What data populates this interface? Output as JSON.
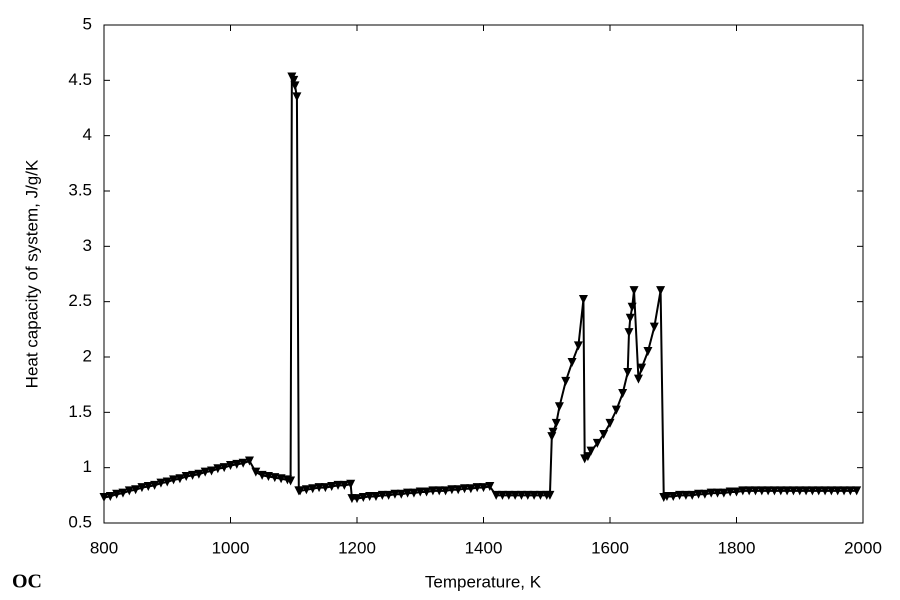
{
  "chart_data": {
    "type": "line",
    "logo": "OC",
    "x_label": "Temperature, K",
    "y_label": "Heat capacity of system, J/g/K",
    "xlim": [
      800,
      2000
    ],
    "xticks": [
      800,
      1000,
      1200,
      1400,
      1600,
      1800,
      2000
    ],
    "ylim": [
      0.5,
      5
    ],
    "yticks": [
      0.5,
      1,
      1.5,
      2,
      2.5,
      3,
      3.5,
      4,
      4.5,
      5
    ],
    "color": "#000000",
    "marker": "triangle-down",
    "x": [
      800,
      810,
      820,
      830,
      840,
      850,
      860,
      870,
      880,
      890,
      900,
      910,
      920,
      930,
      940,
      950,
      960,
      970,
      980,
      990,
      1000,
      1010,
      1020,
      1030,
      1040,
      1050,
      1060,
      1070,
      1080,
      1090,
      1095,
      1097,
      1100,
      1102,
      1105,
      1108,
      1110,
      1120,
      1130,
      1140,
      1150,
      1160,
      1170,
      1180,
      1190,
      1192,
      1200,
      1210,
      1220,
      1230,
      1240,
      1250,
      1260,
      1270,
      1280,
      1290,
      1300,
      1310,
      1320,
      1330,
      1340,
      1350,
      1360,
      1370,
      1380,
      1390,
      1400,
      1410,
      1420,
      1430,
      1440,
      1450,
      1460,
      1470,
      1480,
      1490,
      1500,
      1505,
      1508,
      1510,
      1515,
      1520,
      1530,
      1540,
      1550,
      1558,
      1560,
      1565,
      1570,
      1580,
      1590,
      1600,
      1610,
      1620,
      1628,
      1630,
      1632,
      1635,
      1638,
      1645,
      1650,
      1660,
      1670,
      1680,
      1685,
      1690,
      1700,
      1710,
      1720,
      1730,
      1740,
      1750,
      1760,
      1770,
      1780,
      1790,
      1800,
      1810,
      1820,
      1830,
      1840,
      1850,
      1860,
      1870,
      1880,
      1890,
      1900,
      1910,
      1920,
      1930,
      1940,
      1950,
      1960,
      1970,
      1980,
      1990
    ],
    "values": [
      0.73,
      0.74,
      0.76,
      0.77,
      0.79,
      0.8,
      0.82,
      0.83,
      0.84,
      0.86,
      0.87,
      0.89,
      0.9,
      0.92,
      0.93,
      0.94,
      0.96,
      0.97,
      0.99,
      1.0,
      1.02,
      1.03,
      1.04,
      1.06,
      0.96,
      0.93,
      0.92,
      0.91,
      0.9,
      0.89,
      0.88,
      4.53,
      4.5,
      4.45,
      4.35,
      0.79,
      0.79,
      0.8,
      0.81,
      0.82,
      0.82,
      0.83,
      0.84,
      0.84,
      0.85,
      0.72,
      0.72,
      0.73,
      0.74,
      0.74,
      0.75,
      0.75,
      0.76,
      0.76,
      0.77,
      0.77,
      0.78,
      0.78,
      0.79,
      0.79,
      0.79,
      0.8,
      0.8,
      0.81,
      0.81,
      0.82,
      0.82,
      0.83,
      0.75,
      0.75,
      0.75,
      0.75,
      0.75,
      0.75,
      0.75,
      0.75,
      0.75,
      0.75,
      1.28,
      1.32,
      1.4,
      1.55,
      1.78,
      1.95,
      2.1,
      2.52,
      1.08,
      1.1,
      1.15,
      1.22,
      1.3,
      1.4,
      1.52,
      1.67,
      1.86,
      2.22,
      2.35,
      2.45,
      2.6,
      1.8,
      1.9,
      2.05,
      2.27,
      2.6,
      0.73,
      0.74,
      0.74,
      0.75,
      0.75,
      0.75,
      0.76,
      0.76,
      0.77,
      0.77,
      0.77,
      0.78,
      0.78,
      0.79,
      0.79,
      0.79,
      0.79,
      0.79,
      0.79,
      0.79,
      0.79,
      0.79,
      0.79,
      0.79,
      0.79,
      0.79,
      0.79,
      0.79,
      0.79,
      0.79,
      0.79,
      0.79
    ]
  }
}
